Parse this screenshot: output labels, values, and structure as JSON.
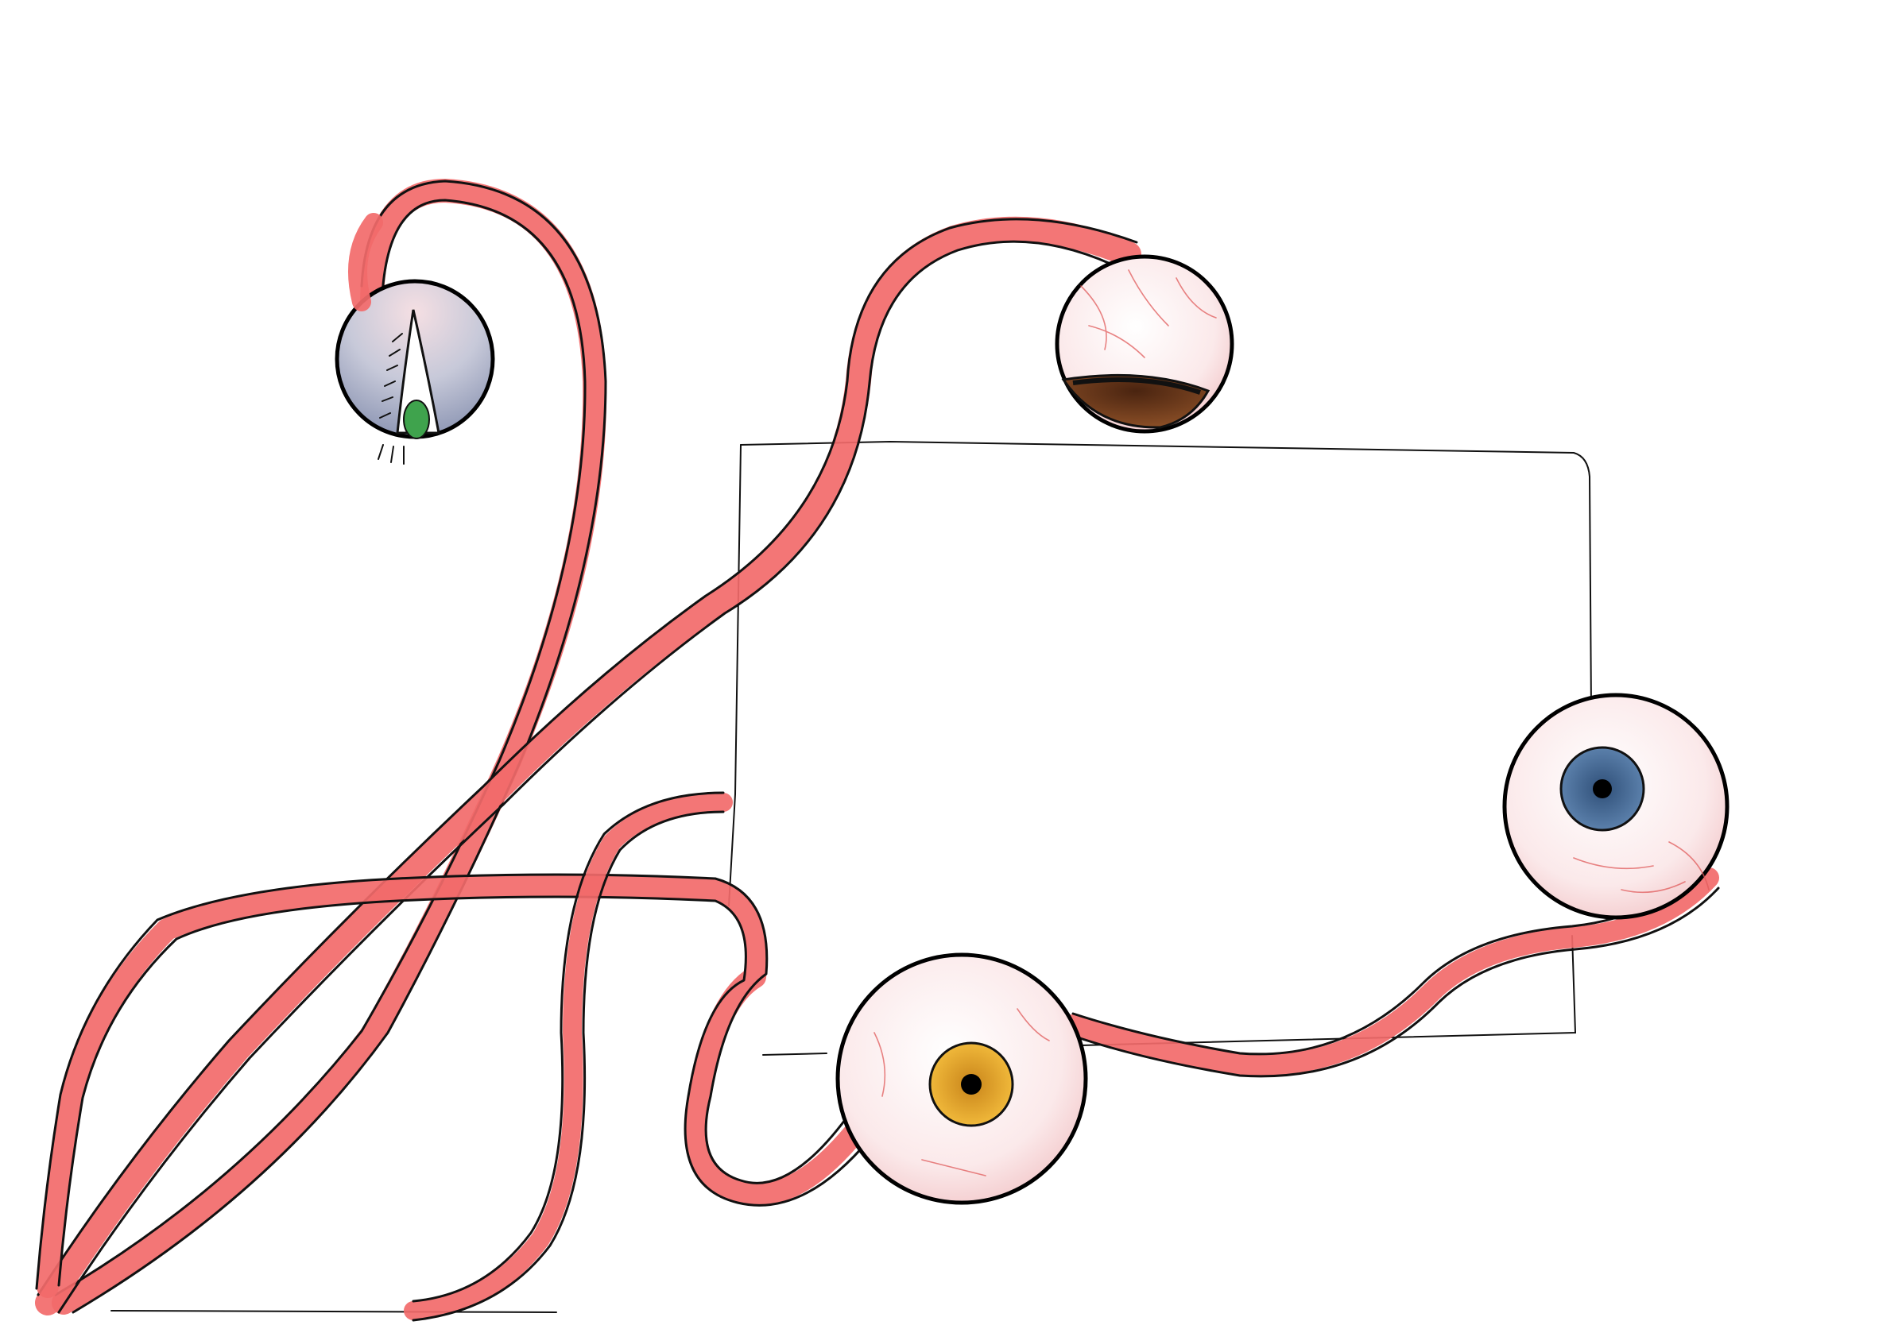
{
  "scene": {
    "background": "#ffffff",
    "ink": "#111111",
    "flesh": "#f26a6a",
    "sclera": "#fdf2f2"
  },
  "eyes": [
    {
      "id": "upper-left",
      "iris_color": "#3fa34d",
      "state": "half-lidded",
      "lid_color": "#9aa3bd"
    },
    {
      "id": "upper-center",
      "iris_color": "#6b3a1e",
      "state": "looking-down"
    },
    {
      "id": "right",
      "iris_color": "#4c6f99",
      "state": "open"
    },
    {
      "id": "bottom-center",
      "iris_color": "#e8a92a",
      "state": "open"
    }
  ]
}
